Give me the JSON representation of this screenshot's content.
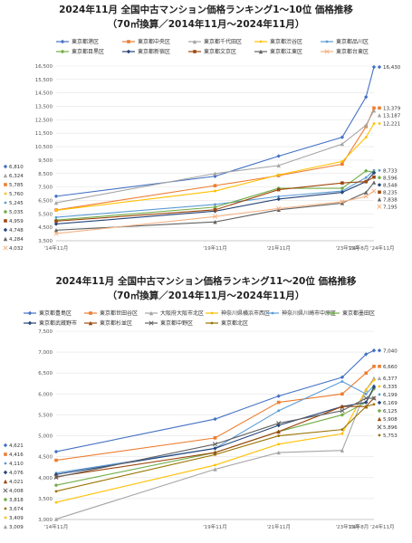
{
  "chart_data": [
    {
      "type": "line",
      "title": "2024年11月 全国中古マンション価格ランキング1～10位 価格推移",
      "subtitle": "（70㎡換算／2014年11月～2024年11月）",
      "x": [
        "'14年11月",
        "'19年11月",
        "'21年11月",
        "'23年11月",
        "'24年8月",
        "'24年11月"
      ],
      "x_pos": [
        2014.83,
        2019.83,
        2021.83,
        2023.83,
        2024.58,
        2024.83
      ],
      "yticks": [
        "3,500",
        "4,500",
        "5,500",
        "6,500",
        "7,500",
        "8,500",
        "9,500",
        "10,500",
        "11,500",
        "12,500",
        "13,500",
        "14,500",
        "15,500",
        "16,500"
      ],
      "ylim": [
        3500,
        16500
      ],
      "grid": true,
      "legend_position": "top",
      "series": [
        {
          "name": "東京都港区",
          "color": "#4472C4",
          "marker": "diamond",
          "values": [
            6810,
            8300,
            9800,
            11200,
            14200,
            16430
          ],
          "start_label": "6,810",
          "end_label": "16,430"
        },
        {
          "name": "東京都中央区",
          "color": "#ED7D31",
          "marker": "square",
          "values": [
            5785,
            7600,
            8350,
            9200,
            12000,
            13379
          ],
          "start_label": "5,785",
          "end_label": "13,379"
        },
        {
          "name": "東京都千代田区",
          "color": "#A5A5A5",
          "marker": "triangle",
          "values": [
            6324,
            8500,
            9100,
            10700,
            12100,
            13187
          ],
          "start_label": "6,324",
          "end_label": "13,187"
        },
        {
          "name": "東京都渋谷区",
          "color": "#FFC000",
          "marker": "none",
          "values": [
            5760,
            7200,
            8400,
            9400,
            11200,
            12221
          ],
          "start_label": "5,760",
          "end_label": "12,221"
        },
        {
          "name": "東京都品川区",
          "color": "#5B9BD5",
          "marker": "none",
          "values": [
            5245,
            6200,
            6800,
            7200,
            8200,
            8733
          ],
          "start_label": "5,245",
          "end_label": "8,733"
        },
        {
          "name": "東京都目黒区",
          "color": "#70AD47",
          "marker": "diamond",
          "values": [
            5035,
            6000,
            7400,
            7400,
            8700,
            8596
          ],
          "start_label": "5,035",
          "end_label": "8,596"
        },
        {
          "name": "東京都新宿区",
          "color": "#264478",
          "marker": "diamond",
          "values": [
            4748,
            5700,
            6600,
            7100,
            7900,
            8548
          ],
          "start_label": "4,748",
          "end_label": "8,548"
        },
        {
          "name": "東京都文京区",
          "color": "#9E480E",
          "marker": "square",
          "values": [
            4959,
            5800,
            7300,
            7800,
            7900,
            8235
          ],
          "start_label": "4,959",
          "end_label": "8,235"
        },
        {
          "name": "東京都江東区",
          "color": "#636363",
          "marker": "triangle",
          "values": [
            4284,
            4900,
            5800,
            6300,
            7100,
            7838
          ],
          "start_label": "4,284",
          "end_label": "7,838"
        },
        {
          "name": "東京都台東区",
          "color": "#F4B183",
          "marker": "x",
          "values": [
            4032,
            5300,
            5900,
            6400,
            6800,
            7195
          ],
          "start_label": "4,032",
          "end_label": "7,195"
        }
      ]
    },
    {
      "type": "line",
      "title": "2024年11月 全国中古マンション価格ランキング11～20位 価格推移",
      "subtitle": "（70㎡換算／2014年11月～2024年11月）",
      "x": [
        "'14年11月",
        "'19年11月",
        "'21年11月",
        "'23年11月",
        "'24年8月",
        "'24年11月"
      ],
      "x_pos": [
        2014.83,
        2019.83,
        2021.83,
        2023.83,
        2024.58,
        2024.83
      ],
      "yticks": [
        "3,000",
        "3,500",
        "4,000",
        "4,500",
        "5,000",
        "5,500",
        "6,000",
        "6,500",
        "7,000",
        "7,500"
      ],
      "ylim": [
        3000,
        7500
      ],
      "grid": true,
      "legend_position": "top",
      "series": [
        {
          "name": "東京都豊島区",
          "color": "#4472C4",
          "marker": "diamond",
          "values": [
            4621,
            5400,
            5950,
            6400,
            6950,
            7040
          ],
          "start_label": "4,621",
          "end_label": "7,040"
        },
        {
          "name": "東京都世田谷区",
          "color": "#ED7D31",
          "marker": "square",
          "values": [
            4416,
            4950,
            5800,
            6000,
            6500,
            6660
          ],
          "start_label": "4,416",
          "end_label": "6,660"
        },
        {
          "name": "大阪府大阪市北区",
          "color": "#A5A5A5",
          "marker": "triangle",
          "values": [
            3009,
            4200,
            4600,
            4650,
            6100,
            6377
          ],
          "start_label": "3,009",
          "end_label": "6,377"
        },
        {
          "name": "神奈川県横浜市西区",
          "color": "#FFC000",
          "marker": "none",
          "values": [
            3409,
            4300,
            4800,
            5050,
            6100,
            6335
          ],
          "start_label": "3,409",
          "end_label": "6,335"
        },
        {
          "name": "神奈川県川崎市中原区",
          "color": "#5B9BD5",
          "marker": "none",
          "values": [
            4110,
            4700,
            5600,
            6300,
            6000,
            6199
          ],
          "start_label": "4,110",
          "end_label": "6,199"
        },
        {
          "name": "東京都墨田区",
          "color": "#70AD47",
          "marker": "diamond",
          "values": [
            3818,
            4600,
            5100,
            5500,
            5800,
            6125
          ],
          "start_label": "3,818",
          "end_label": "6,125"
        },
        {
          "name": "東京都武蔵野市",
          "color": "#264478",
          "marker": "diamond",
          "values": [
            4076,
            4700,
            5250,
            5700,
            5800,
            6169
          ],
          "start_label": "4,076",
          "end_label": "6,169"
        },
        {
          "name": "東京都杉並区",
          "color": "#9E480E",
          "marker": "triangle",
          "values": [
            4021,
            4600,
            5100,
            5700,
            5700,
            5908
          ],
          "start_label": "4,021",
          "end_label": "5,908"
        },
        {
          "name": "東京都中野区",
          "color": "#636363",
          "marker": "x",
          "values": [
            4008,
            4800,
            5300,
            5600,
            5900,
            5896
          ],
          "start_label": "4,008",
          "end_label": "5,896"
        },
        {
          "name": "東京都北区",
          "color": "#997300",
          "marker": "none",
          "values": [
            3674,
            4550,
            5000,
            5150,
            5700,
            5753
          ],
          "start_label": "3,674",
          "end_label": "5,753"
        }
      ]
    }
  ]
}
